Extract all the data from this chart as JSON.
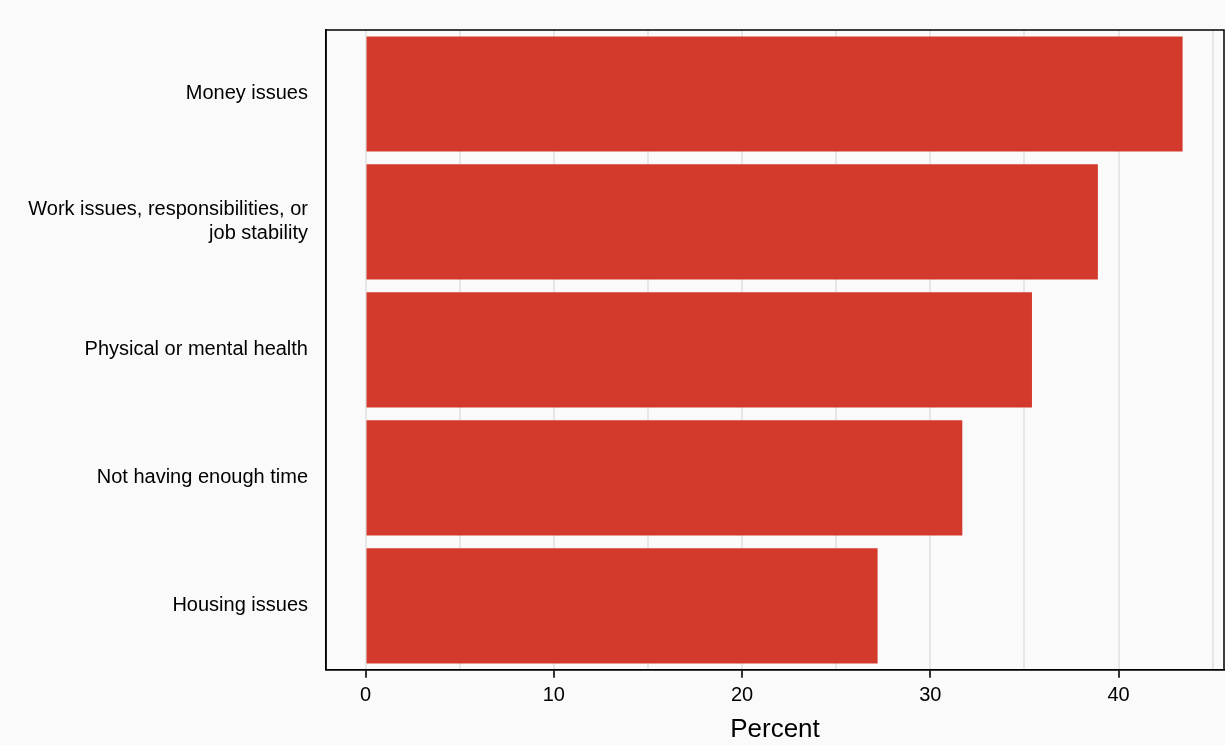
{
  "chart_data": {
    "type": "bar",
    "orientation": "horizontal",
    "xlabel": "Percent",
    "categories": [
      "Money issues",
      "Work issues, responsibilities, or job stability",
      "Physical or mental health",
      "Not having enough time",
      "Housing issues"
    ],
    "values": [
      43.4,
      38.9,
      35.4,
      31.7,
      27.2
    ],
    "color": "#d33a2c",
    "xlim": [
      -2.1,
      45.6
    ],
    "xticks": [
      0,
      {
        "value": 5,
        "label": null
      },
      10,
      {
        "value": 15,
        "label": null
      },
      20,
      {
        "value": 25,
        "label": null
      },
      30,
      {
        "value": 35,
        "label": null
      },
      40,
      {
        "value": 45,
        "label": null
      }
    ],
    "grid": "x",
    "legend": false
  }
}
